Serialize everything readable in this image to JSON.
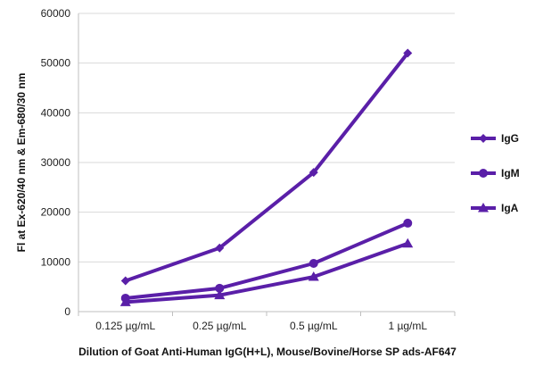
{
  "chart_data": {
    "type": "line",
    "title": "",
    "xlabel": "Dilution of Goat Anti-Human IgG(H+L), Mouse/Bovine/Horse SP ads-AF647",
    "ylabel": "Fl at Ex-620/40 nm & Em-680/30 nm",
    "categories": [
      "0.125 µg/mL",
      "0.25 µg/mL",
      "0.5 µg/mL",
      "1 µg/mL"
    ],
    "ylim": [
      0,
      60000
    ],
    "yticks": [
      0,
      10000,
      20000,
      30000,
      40000,
      50000,
      60000
    ],
    "grid": true,
    "legend_position": "right",
    "series": [
      {
        "name": "IgG",
        "marker": "diamond",
        "color": "#5a1fa8",
        "values": [
          6200,
          12800,
          28000,
          52000
        ]
      },
      {
        "name": "IgM",
        "marker": "circle",
        "color": "#5a1fa8",
        "values": [
          2700,
          4700,
          9700,
          17800
        ]
      },
      {
        "name": "IgA",
        "marker": "triangle",
        "color": "#5a1fa8",
        "values": [
          1900,
          3300,
          7000,
          13700
        ]
      }
    ]
  }
}
